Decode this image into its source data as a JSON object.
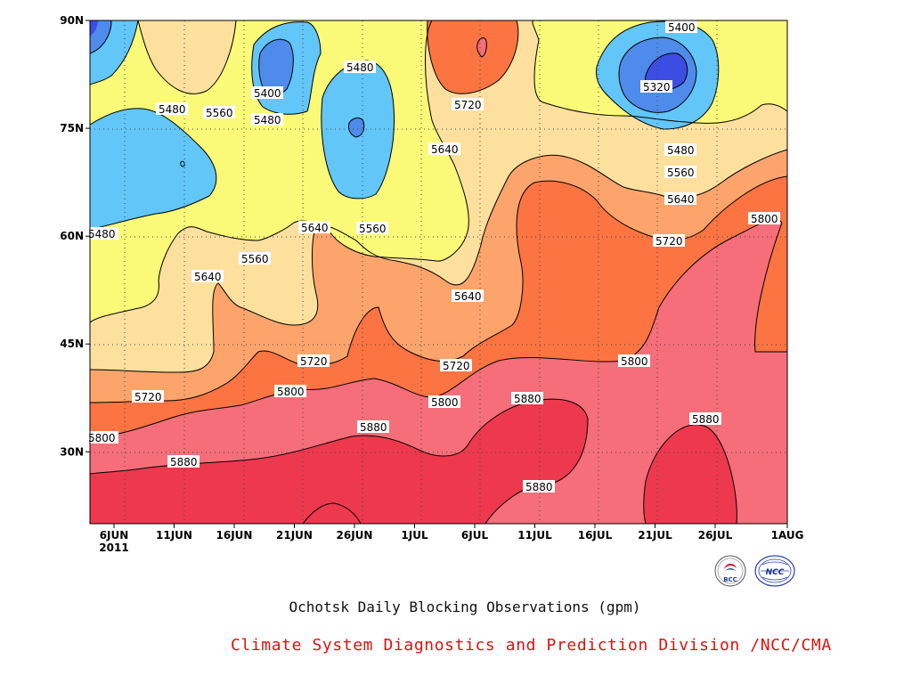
{
  "title": "Ochotsk Daily Blocking Observations (gpm)",
  "subtitle": "Climate System Diagnostics and Prediction Division /NCC/CMA",
  "logos": {
    "left": "BCC",
    "right": "NCC"
  },
  "colors": {
    "5320": "#3c4de4",
    "5400": "#4e8bea",
    "5480": "#62c6f9",
    "5560": "#fafa78",
    "5640": "#fde09e",
    "5720": "#fda46c",
    "5800": "#fc7442",
    "5880": "#f56e7a",
    "9999": "#ee384e"
  },
  "chart_data": {
    "type": "heatmap",
    "title": "Ochotsk Daily Blocking Observations (gpm)",
    "x_ticks": [
      "6JUN",
      "11JUN",
      "16JUN",
      "21JUN",
      "26JUN",
      "1JUL",
      "6JUL",
      "11JUL",
      "16JUL",
      "21JUL",
      "26JUL",
      "1AUG"
    ],
    "x_year": "2011",
    "y_ticks": [
      "30N",
      "45N",
      "60N",
      "75N",
      "90N"
    ],
    "x_range": [
      "2011-06-04",
      "2011-08-01"
    ],
    "y_range": [
      20,
      90
    ],
    "contour_levels": [
      5320,
      5400,
      5480,
      5560,
      5640,
      5720,
      5800,
      5880
    ],
    "grid": true,
    "cells": [
      {
        "period": "2011-06-04",
        "lat": 90,
        "value": 5390
      },
      {
        "period": "2011-06-04",
        "lat": 80,
        "value": 5520
      },
      {
        "period": "2011-06-04",
        "lat": 70,
        "value": 5460
      },
      {
        "period": "2011-06-04",
        "lat": 60,
        "value": 5500
      },
      {
        "period": "2011-06-04",
        "lat": 50,
        "value": 5580
      },
      {
        "period": "2011-06-04",
        "lat": 45,
        "value": 5630
      },
      {
        "period": "2011-06-04",
        "lat": 40,
        "value": 5700
      },
      {
        "period": "2011-06-04",
        "lat": 35,
        "value": 5780
      },
      {
        "period": "2011-06-04",
        "lat": 30,
        "value": 5860
      },
      {
        "period": "2011-06-04",
        "lat": 25,
        "value": 5920
      },
      {
        "period": "2011-06-04",
        "lat": 20,
        "value": 5930
      },
      {
        "period": "2011-06-09",
        "lat": 90,
        "value": 5600
      },
      {
        "period": "2011-06-09",
        "lat": 80,
        "value": 5540
      },
      {
        "period": "2011-06-09",
        "lat": 70,
        "value": 5440
      },
      {
        "period": "2011-06-09",
        "lat": 60,
        "value": 5560
      },
      {
        "period": "2011-06-09",
        "lat": 50,
        "value": 5620
      },
      {
        "period": "2011-06-09",
        "lat": 45,
        "value": 5660
      },
      {
        "period": "2011-06-09",
        "lat": 40,
        "value": 5730
      },
      {
        "period": "2011-06-09",
        "lat": 35,
        "value": 5790
      },
      {
        "period": "2011-06-09",
        "lat": 30,
        "value": 5870
      },
      {
        "period": "2011-06-09",
        "lat": 25,
        "value": 5920
      },
      {
        "period": "2011-06-09",
        "lat": 20,
        "value": 5930
      },
      {
        "period": "2011-06-14",
        "lat": 90,
        "value": 5560
      },
      {
        "period": "2011-06-14",
        "lat": 80,
        "value": 5560
      },
      {
        "period": "2011-06-14",
        "lat": 70,
        "value": 5520
      },
      {
        "period": "2011-06-14",
        "lat": 60,
        "value": 5620
      },
      {
        "period": "2011-06-14",
        "lat": 50,
        "value": 5660
      },
      {
        "period": "2011-06-14",
        "lat": 45,
        "value": 5700
      },
      {
        "period": "2011-06-14",
        "lat": 40,
        "value": 5760
      },
      {
        "period": "2011-06-14",
        "lat": 35,
        "value": 5810
      },
      {
        "period": "2011-06-14",
        "lat": 30,
        "value": 5880
      },
      {
        "period": "2011-06-14",
        "lat": 25,
        "value": 5920
      },
      {
        "period": "2011-06-14",
        "lat": 20,
        "value": 5940
      },
      {
        "period": "2011-06-19",
        "lat": 90,
        "value": 5450
      },
      {
        "period": "2011-06-19",
        "lat": 80,
        "value": 5420
      },
      {
        "period": "2011-06-19",
        "lat": 70,
        "value": 5540
      },
      {
        "period": "2011-06-19",
        "lat": 60,
        "value": 5640
      },
      {
        "period": "2011-06-19",
        "lat": 50,
        "value": 5690
      },
      {
        "period": "2011-06-19",
        "lat": 45,
        "value": 5730
      },
      {
        "period": "2011-06-19",
        "lat": 40,
        "value": 5790
      },
      {
        "period": "2011-06-19",
        "lat": 35,
        "value": 5840
      },
      {
        "period": "2011-06-19",
        "lat": 30,
        "value": 5890
      },
      {
        "period": "2011-06-19",
        "lat": 25,
        "value": 5930
      },
      {
        "period": "2011-06-19",
        "lat": 20,
        "value": 5940
      },
      {
        "period": "2011-06-24",
        "lat": 90,
        "value": 5530
      },
      {
        "period": "2011-06-24",
        "lat": 80,
        "value": 5480
      },
      {
        "period": "2011-06-24",
        "lat": 70,
        "value": 5470
      },
      {
        "period": "2011-06-24",
        "lat": 60,
        "value": 5650
      },
      {
        "period": "2011-06-24",
        "lat": 50,
        "value": 5700
      },
      {
        "period": "2011-06-24",
        "lat": 45,
        "value": 5760
      },
      {
        "period": "2011-06-24",
        "lat": 40,
        "value": 5820
      },
      {
        "period": "2011-06-24",
        "lat": 35,
        "value": 5860
      },
      {
        "period": "2011-06-24",
        "lat": 30,
        "value": 5900
      },
      {
        "period": "2011-06-24",
        "lat": 25,
        "value": 5920
      },
      {
        "period": "2011-06-24",
        "lat": 20,
        "value": 5900
      },
      {
        "period": "2011-06-29",
        "lat": 90,
        "value": 5620
      },
      {
        "period": "2011-06-29",
        "lat": 80,
        "value": 5600
      },
      {
        "period": "2011-06-29",
        "lat": 70,
        "value": 5580
      },
      {
        "period": "2011-06-29",
        "lat": 60,
        "value": 5660
      },
      {
        "period": "2011-06-29",
        "lat": 50,
        "value": 5700
      },
      {
        "period": "2011-06-29",
        "lat": 45,
        "value": 5730
      },
      {
        "period": "2011-06-29",
        "lat": 40,
        "value": 5800
      },
      {
        "period": "2011-06-29",
        "lat": 35,
        "value": 5850
      },
      {
        "period": "2011-06-29",
        "lat": 30,
        "value": 5890
      },
      {
        "period": "2011-06-29",
        "lat": 25,
        "value": 5920
      },
      {
        "period": "2011-06-29",
        "lat": 20,
        "value": 5910
      },
      {
        "period": "2011-07-04",
        "lat": 90,
        "value": 5730
      },
      {
        "period": "2011-07-04",
        "lat": 80,
        "value": 5700
      },
      {
        "period": "2011-07-04",
        "lat": 70,
        "value": 5630
      },
      {
        "period": "2011-07-04",
        "lat": 60,
        "value": 5600
      },
      {
        "period": "2011-07-04",
        "lat": 50,
        "value": 5650
      },
      {
        "period": "2011-07-04",
        "lat": 45,
        "value": 5720
      },
      {
        "period": "2011-07-04",
        "lat": 40,
        "value": 5790
      },
      {
        "period": "2011-07-04",
        "lat": 35,
        "value": 5850
      },
      {
        "period": "2011-07-04",
        "lat": 30,
        "value": 5890
      },
      {
        "period": "2011-07-04",
        "lat": 25,
        "value": 5910
      },
      {
        "period": "2011-07-04",
        "lat": 20,
        "value": 5890
      },
      {
        "period": "2011-07-09",
        "lat": 90,
        "value": 5640
      },
      {
        "period": "2011-07-09",
        "lat": 80,
        "value": 5610
      },
      {
        "period": "2011-07-09",
        "lat": 70,
        "value": 5640
      },
      {
        "period": "2011-07-09",
        "lat": 60,
        "value": 5710
      },
      {
        "period": "2011-07-09",
        "lat": 50,
        "value": 5740
      },
      {
        "period": "2011-07-09",
        "lat": 45,
        "value": 5770
      },
      {
        "period": "2011-07-09",
        "lat": 40,
        "value": 5820
      },
      {
        "period": "2011-07-09",
        "lat": 35,
        "value": 5870
      },
      {
        "period": "2011-07-09",
        "lat": 30,
        "value": 5900
      },
      {
        "period": "2011-07-09",
        "lat": 25,
        "value": 5900
      },
      {
        "period": "2011-07-09",
        "lat": 20,
        "value": 5860
      },
      {
        "period": "2011-07-14",
        "lat": 90,
        "value": 5560
      },
      {
        "period": "2011-07-14",
        "lat": 80,
        "value": 5570
      },
      {
        "period": "2011-07-14",
        "lat": 70,
        "value": 5680
      },
      {
        "period": "2011-07-14",
        "lat": 60,
        "value": 5750
      },
      {
        "period": "2011-07-14",
        "lat": 50,
        "value": 5770
      },
      {
        "period": "2011-07-14",
        "lat": 45,
        "value": 5790
      },
      {
        "period": "2011-07-14",
        "lat": 40,
        "value": 5830
      },
      {
        "period": "2011-07-14",
        "lat": 35,
        "value": 5860
      },
      {
        "period": "2011-07-14",
        "lat": 30,
        "value": 5870
      },
      {
        "period": "2011-07-14",
        "lat": 25,
        "value": 5860
      },
      {
        "period": "2011-07-14",
        "lat": 20,
        "value": 5850
      },
      {
        "period": "2011-07-19",
        "lat": 90,
        "value": 5420
      },
      {
        "period": "2011-07-19",
        "lat": 80,
        "value": 5400
      },
      {
        "period": "2011-07-19",
        "lat": 70,
        "value": 5580
      },
      {
        "period": "2011-07-19",
        "lat": 60,
        "value": 5730
      },
      {
        "period": "2011-07-19",
        "lat": 50,
        "value": 5780
      },
      {
        "period": "2011-07-19",
        "lat": 45,
        "value": 5800
      },
      {
        "period": "2011-07-19",
        "lat": 40,
        "value": 5830
      },
      {
        "period": "2011-07-19",
        "lat": 35,
        "value": 5850
      },
      {
        "period": "2011-07-19",
        "lat": 30,
        "value": 5860
      },
      {
        "period": "2011-07-19",
        "lat": 25,
        "value": 5860
      },
      {
        "period": "2011-07-19",
        "lat": 20,
        "value": 5870
      },
      {
        "period": "2011-07-24",
        "lat": 90,
        "value": 5380
      },
      {
        "period": "2011-07-24",
        "lat": 80,
        "value": 5340
      },
      {
        "period": "2011-07-24",
        "lat": 70,
        "value": 5530
      },
      {
        "period": "2011-07-24",
        "lat": 60,
        "value": 5720
      },
      {
        "period": "2011-07-24",
        "lat": 50,
        "value": 5800
      },
      {
        "period": "2011-07-24",
        "lat": 45,
        "value": 5820
      },
      {
        "period": "2011-07-24",
        "lat": 40,
        "value": 5840
      },
      {
        "period": "2011-07-24",
        "lat": 35,
        "value": 5860
      },
      {
        "period": "2011-07-24",
        "lat": 30,
        "value": 5890
      },
      {
        "period": "2011-07-24",
        "lat": 25,
        "value": 5900
      },
      {
        "period": "2011-07-24",
        "lat": 20,
        "value": 5900
      },
      {
        "period": "2011-07-29",
        "lat": 90,
        "value": 5540
      },
      {
        "period": "2011-07-29",
        "lat": 80,
        "value": 5560
      },
      {
        "period": "2011-07-29",
        "lat": 70,
        "value": 5620
      },
      {
        "period": "2011-07-29",
        "lat": 60,
        "value": 5770
      },
      {
        "period": "2011-07-29",
        "lat": 50,
        "value": 5810
      },
      {
        "period": "2011-07-29",
        "lat": 45,
        "value": 5820
      },
      {
        "period": "2011-07-29",
        "lat": 40,
        "value": 5840
      },
      {
        "period": "2011-07-29",
        "lat": 35,
        "value": 5850
      },
      {
        "period": "2011-07-29",
        "lat": 30,
        "value": 5860
      },
      {
        "period": "2011-07-29",
        "lat": 25,
        "value": 5870
      },
      {
        "period": "2011-07-29",
        "lat": 20,
        "value": 5860
      }
    ]
  }
}
